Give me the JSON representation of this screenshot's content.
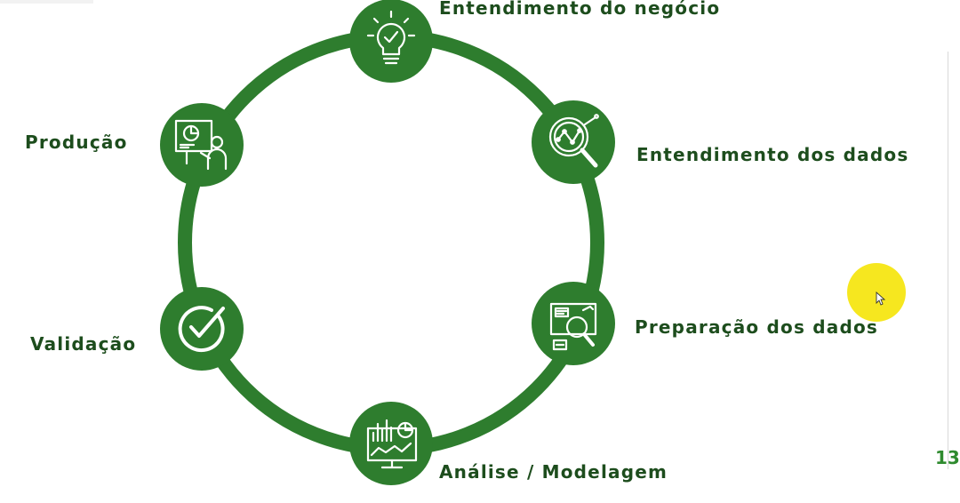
{
  "diagram": {
    "ring_color": "#2e7d2e",
    "node_color": "#2e7d2e",
    "icon_color": "#ffffff",
    "label_color": "#1d4d1d",
    "steps": [
      {
        "label": "Entendimento do negócio",
        "icon": "lightbulb-check-icon"
      },
      {
        "label": "Entendimento dos dados",
        "icon": "magnifier-chart-icon"
      },
      {
        "label": "Preparação dos dados",
        "icon": "magnifier-board-icon"
      },
      {
        "label": "Análise / Modelagem",
        "icon": "monitor-analytics-icon"
      },
      {
        "label": "Validação",
        "icon": "circle-check-icon"
      },
      {
        "label": "Produção",
        "icon": "presenter-board-icon"
      }
    ]
  },
  "slide_number": "13",
  "cursor": {
    "highlight_color": "#f5e400"
  }
}
